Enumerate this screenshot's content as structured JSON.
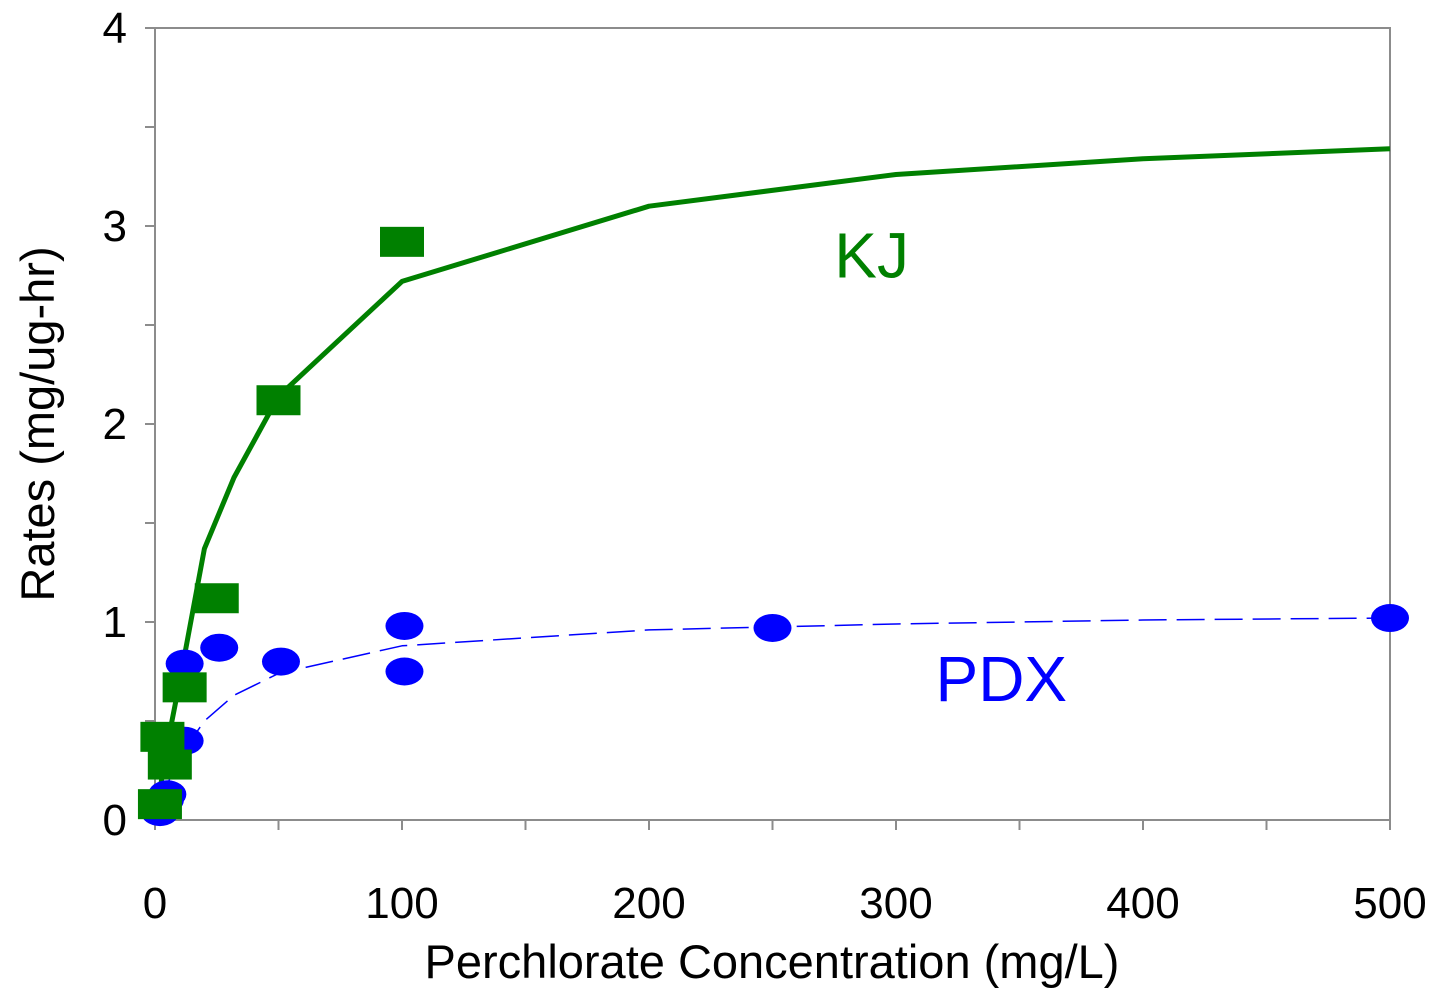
{
  "chart_data": {
    "type": "scatter",
    "title": "",
    "xlabel": "Perchlorate Concentration (mg/L)",
    "ylabel": "Rates (mg/ug-hr)",
    "xlim": [
      0,
      500
    ],
    "ylim": [
      0,
      4
    ],
    "x_ticks": [
      0,
      100,
      200,
      300,
      400,
      500
    ],
    "x_minor_step": 50,
    "y_ticks": [
      0,
      1,
      2,
      3,
      4
    ],
    "y_minor_step": 0.5,
    "grid": false,
    "series": [
      {
        "name": "KJ",
        "color": "#008000",
        "marker": "square",
        "points": [
          [
            2,
            0.08
          ],
          [
            3,
            0.42
          ],
          [
            6,
            0.28
          ],
          [
            12,
            0.67
          ],
          [
            25,
            1.12
          ],
          [
            50,
            2.12
          ],
          [
            100,
            2.92
          ]
        ],
        "fit_line": {
          "style": "solid",
          "points": [
            [
              0,
              0
            ],
            [
              5,
              0.38
            ],
            [
              10,
              0.7
            ],
            [
              20,
              1.37
            ],
            [
              32,
              1.73
            ],
            [
              50,
              2.14
            ],
            [
              100,
              2.72
            ],
            [
              200,
              3.1
            ],
            [
              300,
              3.26
            ],
            [
              400,
              3.34
            ],
            [
              500,
              3.39
            ]
          ]
        }
      },
      {
        "name": "PDX",
        "color": "#0000ff",
        "marker": "circle",
        "points": [
          [
            2,
            0.04
          ],
          [
            4,
            0.1
          ],
          [
            5,
            0.13
          ],
          [
            12,
            0.4
          ],
          [
            12,
            0.79
          ],
          [
            26,
            0.87
          ],
          [
            51,
            0.8
          ],
          [
            101,
            0.98
          ],
          [
            101,
            0.75
          ],
          [
            250,
            0.97
          ],
          [
            500,
            1.02
          ]
        ],
        "fit_line": {
          "style": "dashed",
          "points": [
            [
              0,
              0
            ],
            [
              5,
              0.18
            ],
            [
              10,
              0.32
            ],
            [
              20,
              0.5
            ],
            [
              32,
              0.63
            ],
            [
              50,
              0.74
            ],
            [
              100,
              0.88
            ],
            [
              200,
              0.96
            ],
            [
              300,
              0.99
            ],
            [
              400,
              1.01
            ],
            [
              500,
              1.02
            ]
          ]
        }
      }
    ],
    "series_labels": [
      {
        "text": "KJ",
        "series": "KJ",
        "x": 275,
        "y": 2.74
      },
      {
        "text": "PDX",
        "series": "PDX",
        "x": 316,
        "y": 0.6
      }
    ],
    "colors": {
      "axis": "#8c8c8c",
      "text": "#000000"
    }
  }
}
